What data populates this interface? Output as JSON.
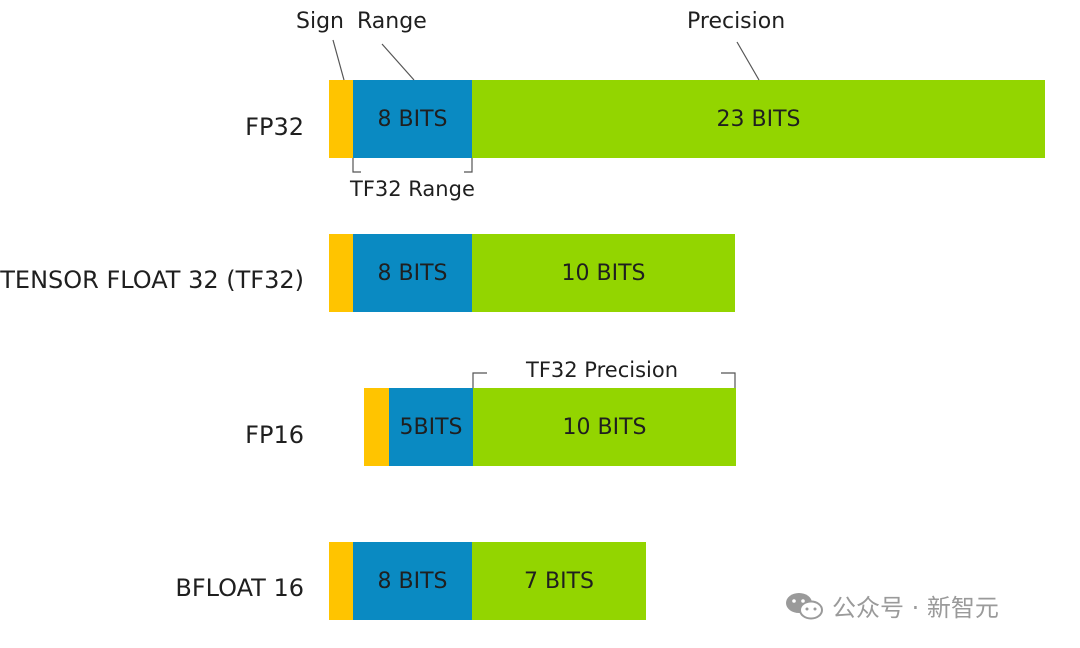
{
  "labels": {
    "sign": "Sign",
    "range": "Range",
    "precision": "Precision",
    "tf32_range": "TF32 Range",
    "tf32_precision": "TF32 Precision"
  },
  "formats": [
    {
      "name": "FP32",
      "range_bits": "8 BITS",
      "precision_bits": "23 BITS"
    },
    {
      "name": "TENSOR FLOAT 32 (TF32)",
      "range_bits": "8 BITS",
      "precision_bits": "10 BITS"
    },
    {
      "name": "FP16",
      "range_bits": "5BITS",
      "precision_bits": "10 BITS"
    },
    {
      "name": "BFLOAT 16",
      "range_bits": "8 BITS",
      "precision_bits": "7 BITS"
    }
  ],
  "colors": {
    "sign": "#ffc400",
    "range": "#0a8ac2",
    "precision": "#93d500"
  },
  "watermark": {
    "icon": "wechat-icon",
    "text": "公众号 · 新智元"
  }
}
